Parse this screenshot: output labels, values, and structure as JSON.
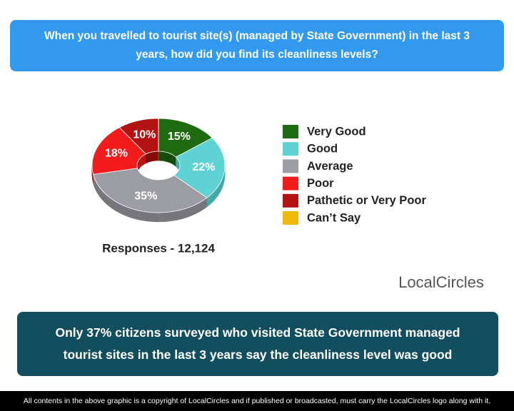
{
  "chart_data": {
    "type": "donut",
    "title": "When you travelled to tourist site(s) (managed by State Government) in the last 3 years, how did you find its cleanliness levels?",
    "subtitle": "Responses - 12,124",
    "categories": [
      "Very Good",
      "Good",
      "Average",
      "Poor",
      "Pathetic or Very Poor",
      "Can’t Say"
    ],
    "values": [
      15,
      22,
      35,
      18,
      10,
      0
    ],
    "value_labels": [
      "15%",
      "22%",
      "35%",
      "18%",
      "10%",
      null
    ],
    "colors": [
      "#1e6b12",
      "#5fd3d3",
      "#9c9ca4",
      "#f21c1c",
      "#b31212",
      "#f2b90f"
    ],
    "side_colors": [
      "#154d0d",
      "#44a9a9",
      "#76767d",
      "#b81414",
      "#850c0c",
      "#b88b0a"
    ]
  },
  "logo": "LocalCircles",
  "conclusion": "Only 37% citizens surveyed who visited State Government managed tourist sites in the last 3 years say the cleanliness level was good",
  "footer": "All contents in the above graphic is a copyright of LocalCircles and if published or broadcasted, must carry the LocalCircles logo along with it."
}
